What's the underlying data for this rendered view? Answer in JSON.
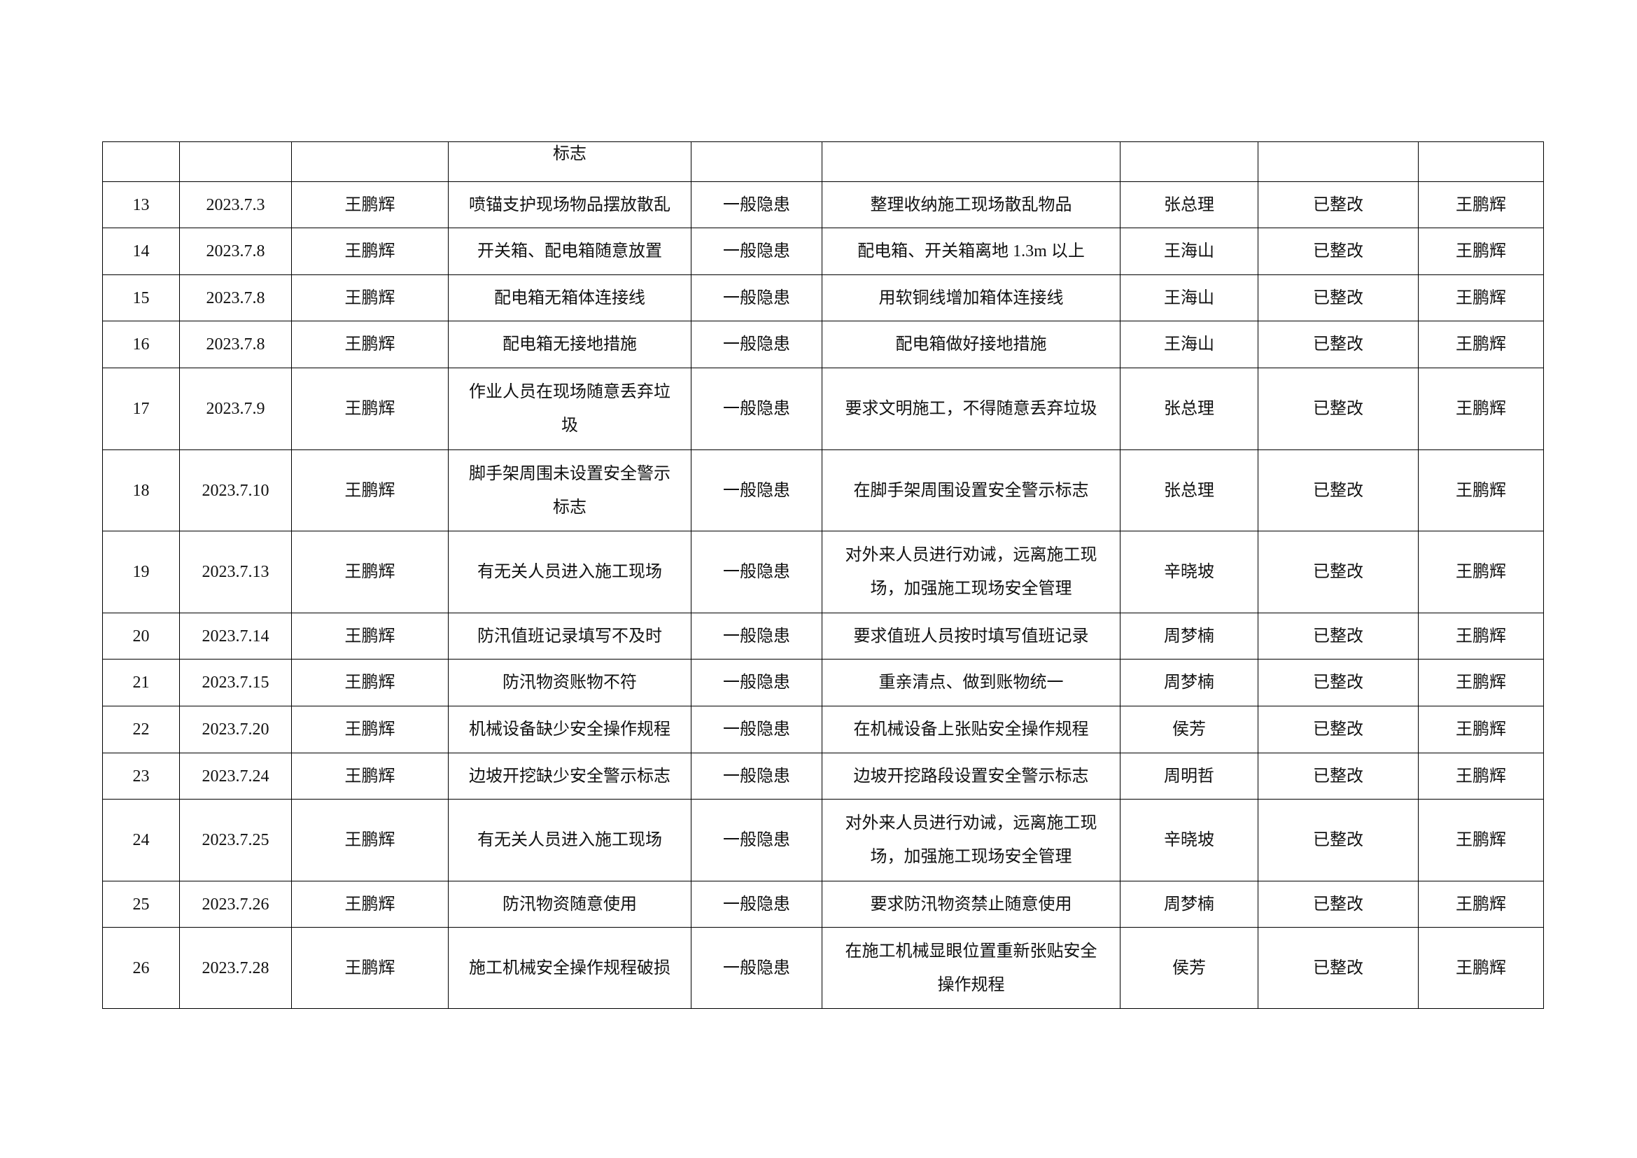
{
  "table": {
    "continued_row": {
      "hazard": "标志"
    },
    "rows": [
      [
        "13",
        "2023.7.3",
        "王鹏辉",
        "喷锚支护现场物品摆放散乱",
        "一般隐患",
        "整理收纳施工现场散乱物品",
        "张总理",
        "已整改",
        "王鹏辉"
      ],
      [
        "14",
        "2023.7.8",
        "王鹏辉",
        "开关箱、配电箱随意放置",
        "一般隐患",
        "配电箱、开关箱离地 1.3m 以上",
        "王海山",
        "已整改",
        "王鹏辉"
      ],
      [
        "15",
        "2023.7.8",
        "王鹏辉",
        "配电箱无箱体连接线",
        "一般隐患",
        "用软铜线增加箱体连接线",
        "王海山",
        "已整改",
        "王鹏辉"
      ],
      [
        "16",
        "2023.7.8",
        "王鹏辉",
        "配电箱无接地措施",
        "一般隐患",
        "配电箱做好接地措施",
        "王海山",
        "已整改",
        "王鹏辉"
      ],
      [
        "17",
        "2023.7.9",
        "王鹏辉",
        "作业人员在现场随意丢弃垃圾",
        "一般隐患",
        "要求文明施工，不得随意丢弃垃圾",
        "张总理",
        "已整改",
        "王鹏辉"
      ],
      [
        "18",
        "2023.7.10",
        "王鹏辉",
        "脚手架周围未设置安全警示标志",
        "一般隐患",
        "在脚手架周围设置安全警示标志",
        "张总理",
        "已整改",
        "王鹏辉"
      ],
      [
        "19",
        "2023.7.13",
        "王鹏辉",
        "有无关人员进入施工现场",
        "一般隐患",
        "对外来人员进行劝诫，远离施工现场，加强施工现场安全管理",
        "辛晓坡",
        "已整改",
        "王鹏辉"
      ],
      [
        "20",
        "2023.7.14",
        "王鹏辉",
        "防汛值班记录填写不及时",
        "一般隐患",
        "要求值班人员按时填写值班记录",
        "周梦楠",
        "已整改",
        "王鹏辉"
      ],
      [
        "21",
        "2023.7.15",
        "王鹏辉",
        "防汛物资账物不符",
        "一般隐患",
        "重亲清点、做到账物统一",
        "周梦楠",
        "已整改",
        "王鹏辉"
      ],
      [
        "22",
        "2023.7.20",
        "王鹏辉",
        "机械设备缺少安全操作规程",
        "一般隐患",
        "在机械设备上张贴安全操作规程",
        "侯芳",
        "已整改",
        "王鹏辉"
      ],
      [
        "23",
        "2023.7.24",
        "王鹏辉",
        "边坡开挖缺少安全警示标志",
        "一般隐患",
        "边坡开挖路段设置安全警示标志",
        "周明哲",
        "已整改",
        "王鹏辉"
      ],
      [
        "24",
        "2023.7.25",
        "王鹏辉",
        "有无关人员进入施工现场",
        "一般隐患",
        "对外来人员进行劝诫，远离施工现场，加强施工现场安全管理",
        "辛晓坡",
        "已整改",
        "王鹏辉"
      ],
      [
        "25",
        "2023.7.26",
        "王鹏辉",
        "防汛物资随意使用",
        "一般隐患",
        "要求防汛物资禁止随意使用",
        "周梦楠",
        "已整改",
        "王鹏辉"
      ],
      [
        "26",
        "2023.7.28",
        "王鹏辉",
        "施工机械安全操作规程破损",
        "一般隐患",
        "在施工机械显眼位置重新张贴安全操作规程",
        "侯芳",
        "已整改",
        "王鹏辉"
      ]
    ]
  }
}
